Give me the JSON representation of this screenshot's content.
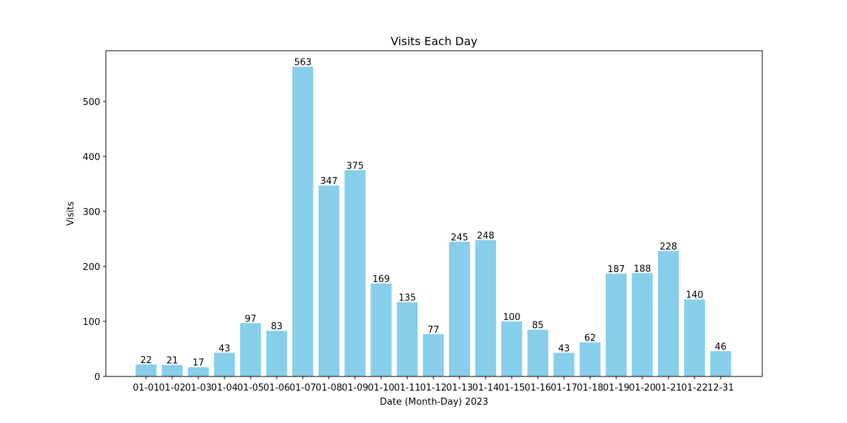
{
  "chart_data": {
    "type": "bar",
    "title": "Visits Each Day",
    "xlabel": "Date (Month-Day) 2023",
    "ylabel": "Visits",
    "categories": [
      "01-01",
      "01-02",
      "01-03",
      "01-04",
      "01-05",
      "01-06",
      "01-07",
      "01-08",
      "01-09",
      "01-10",
      "01-11",
      "01-12",
      "01-13",
      "01-14",
      "01-15",
      "01-16",
      "01-17",
      "01-18",
      "01-19",
      "01-20",
      "01-21",
      "01-22",
      "12-31"
    ],
    "values": [
      22,
      21,
      17,
      43,
      97,
      83,
      563,
      347,
      375,
      169,
      135,
      77,
      245,
      248,
      100,
      85,
      43,
      62,
      187,
      188,
      228,
      140,
      46
    ],
    "ylim": [
      0,
      592
    ],
    "yticks": [
      0,
      100,
      200,
      300,
      400,
      500
    ],
    "bar_color": "#87ceeb",
    "grid": false,
    "legend": "none"
  }
}
